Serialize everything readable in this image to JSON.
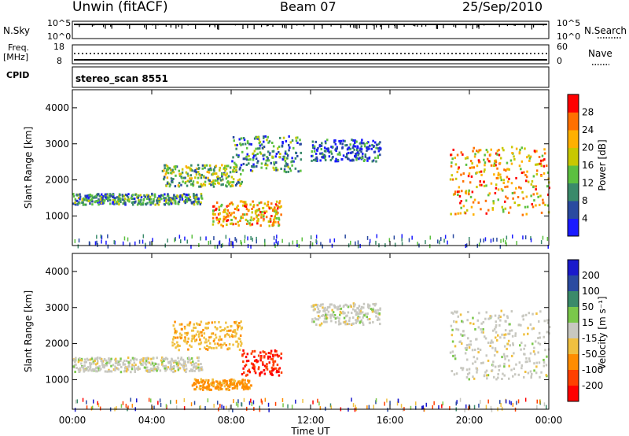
{
  "header": {
    "station": "Unwin (fitACF)",
    "beam": "Beam 07",
    "date": "25/Sep/2010"
  },
  "status_panels": {
    "nsky_label": "N.Sky",
    "nsky_ticks": [
      "10^5",
      "10^0"
    ],
    "nsearch_label": "N.Search",
    "freq_label": "Freq.",
    "freq_unit": "[MHz]",
    "freq_ticks": [
      "18",
      "8"
    ],
    "nave_ticks": [
      "60",
      "0"
    ],
    "nave_label": "Nave",
    "cpid_label": "CPID",
    "cpid_value": "stereo_scan 8551"
  },
  "chart_data": [
    {
      "type": "heatmap",
      "name": "power",
      "ylabel": "Slant Range [km]",
      "xlabel": "",
      "xlim": [
        0,
        24
      ],
      "ylim": [
        180,
        4500
      ],
      "x_ticks": [
        "00:00",
        "04:00",
        "08:00",
        "12:00",
        "16:00",
        "20:00",
        "00:00"
      ],
      "y_ticks": [
        1000,
        2000,
        3000,
        4000
      ],
      "colorbar": {
        "label": "Power [dB]",
        "ticks": [
          4,
          8,
          12,
          16,
          20,
          24,
          28
        ],
        "colors": [
          "#1a1aff",
          "#2a4aa0",
          "#3a8a6a",
          "#5cc040",
          "#c8c800",
          "#ffb000",
          "#ff7000",
          "#ff0000"
        ]
      },
      "regions": [
        {
          "x_start": 0.0,
          "x_end": 6.5,
          "range_start": 1300,
          "range_end": 1600,
          "level": 2
        },
        {
          "x_start": 4.5,
          "x_end": 8.5,
          "range_start": 1800,
          "range_end": 2400,
          "level": 3
        },
        {
          "x_start": 7.0,
          "x_end": 10.5,
          "range_start": 700,
          "range_end": 1400,
          "level": 5
        },
        {
          "x_start": 8.0,
          "x_end": 11.5,
          "range_start": 2200,
          "range_end": 3200,
          "level": 2
        },
        {
          "x_start": 12.0,
          "x_end": 15.5,
          "range_start": 2500,
          "range_end": 3100,
          "level": 1
        },
        {
          "x_start": 19.0,
          "x_end": 24.0,
          "range_start": 1000,
          "range_end": 2900,
          "level": 5
        }
      ]
    },
    {
      "type": "heatmap",
      "name": "velocity",
      "ylabel": "Slant Range [km]",
      "xlabel": "Time UT",
      "xlim": [
        0,
        24
      ],
      "ylim": [
        180,
        4500
      ],
      "x_ticks": [
        "00:00",
        "04:00",
        "08:00",
        "12:00",
        "16:00",
        "20:00",
        "00:00"
      ],
      "y_ticks": [
        1000,
        2000,
        3000,
        4000
      ],
      "colorbar": {
        "label": "Velocity [m s⁻¹]",
        "ticks": [
          200,
          100,
          50,
          15,
          -15,
          -50,
          -100,
          -200
        ],
        "colors": [
          "#1a1acc",
          "#2a4aa0",
          "#3a8a6a",
          "#7ac84a",
          "#c8c8c0",
          "#f0c040",
          "#ff8c00",
          "#ff4000",
          "#ff0000"
        ]
      },
      "regions": [
        {
          "x_start": 0.0,
          "x_end": 6.5,
          "range_start": 1200,
          "range_end": 1600,
          "velocity": 0
        },
        {
          "x_start": 5.0,
          "x_end": 8.5,
          "range_start": 1800,
          "range_end": 2600,
          "velocity": -40
        },
        {
          "x_start": 6.0,
          "x_end": 9.0,
          "range_start": 700,
          "range_end": 1000,
          "velocity": -60
        },
        {
          "x_start": 8.5,
          "x_end": 10.5,
          "range_start": 1100,
          "range_end": 1800,
          "velocity": -200
        },
        {
          "x_start": 12.0,
          "x_end": 15.5,
          "range_start": 2500,
          "range_end": 3100,
          "velocity": 0
        },
        {
          "x_start": 19.0,
          "x_end": 24.0,
          "range_start": 1000,
          "range_end": 2900,
          "velocity": 0
        }
      ]
    }
  ]
}
